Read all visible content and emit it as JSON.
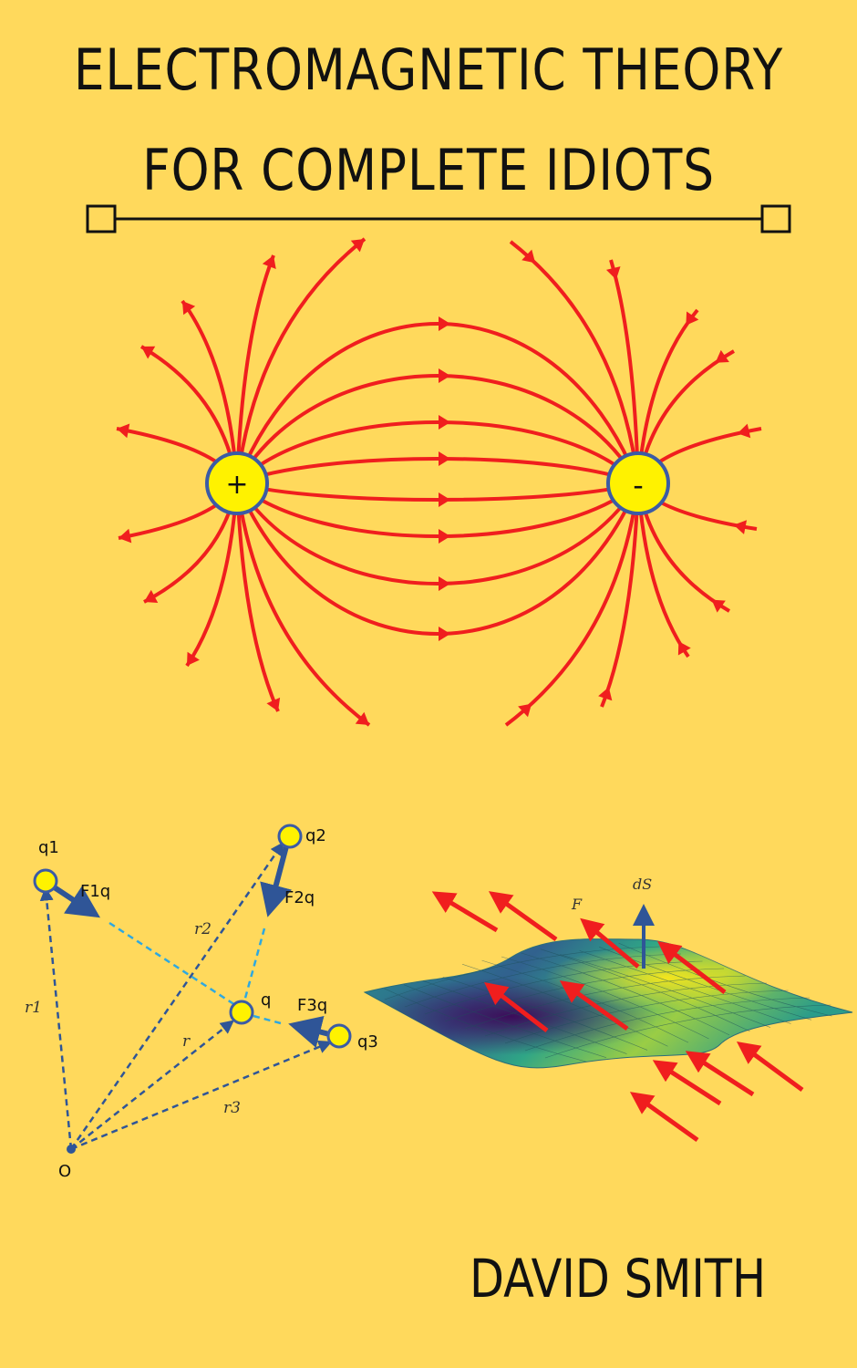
{
  "cover": {
    "title_line1": "ELECTROMAGNETIC THEORY",
    "title_line2": "FOR COMPLETE IDIOTS",
    "author": "DAVID SMITH"
  },
  "dipole": {
    "positive_label": "+",
    "negative_label": "-",
    "field_color": "#F01E1E",
    "charge_fill": "#FFF200",
    "charge_stroke": "#3B5BA5"
  },
  "coulomb_diagram": {
    "q1": "q1",
    "q2": "q2",
    "q3": "q3",
    "q": "q",
    "origin": "O",
    "f1": "F1q",
    "f2": "F2q",
    "f3": "F3q",
    "r1": "r1",
    "r2": "r2",
    "r3": "r3",
    "r": "r",
    "vector_color": "#2F5597",
    "link_color": "#2EA8E0"
  },
  "flux_diagram": {
    "force_label": "F",
    "area_label": "dS"
  },
  "colors": {
    "background": "#FFD95C"
  }
}
